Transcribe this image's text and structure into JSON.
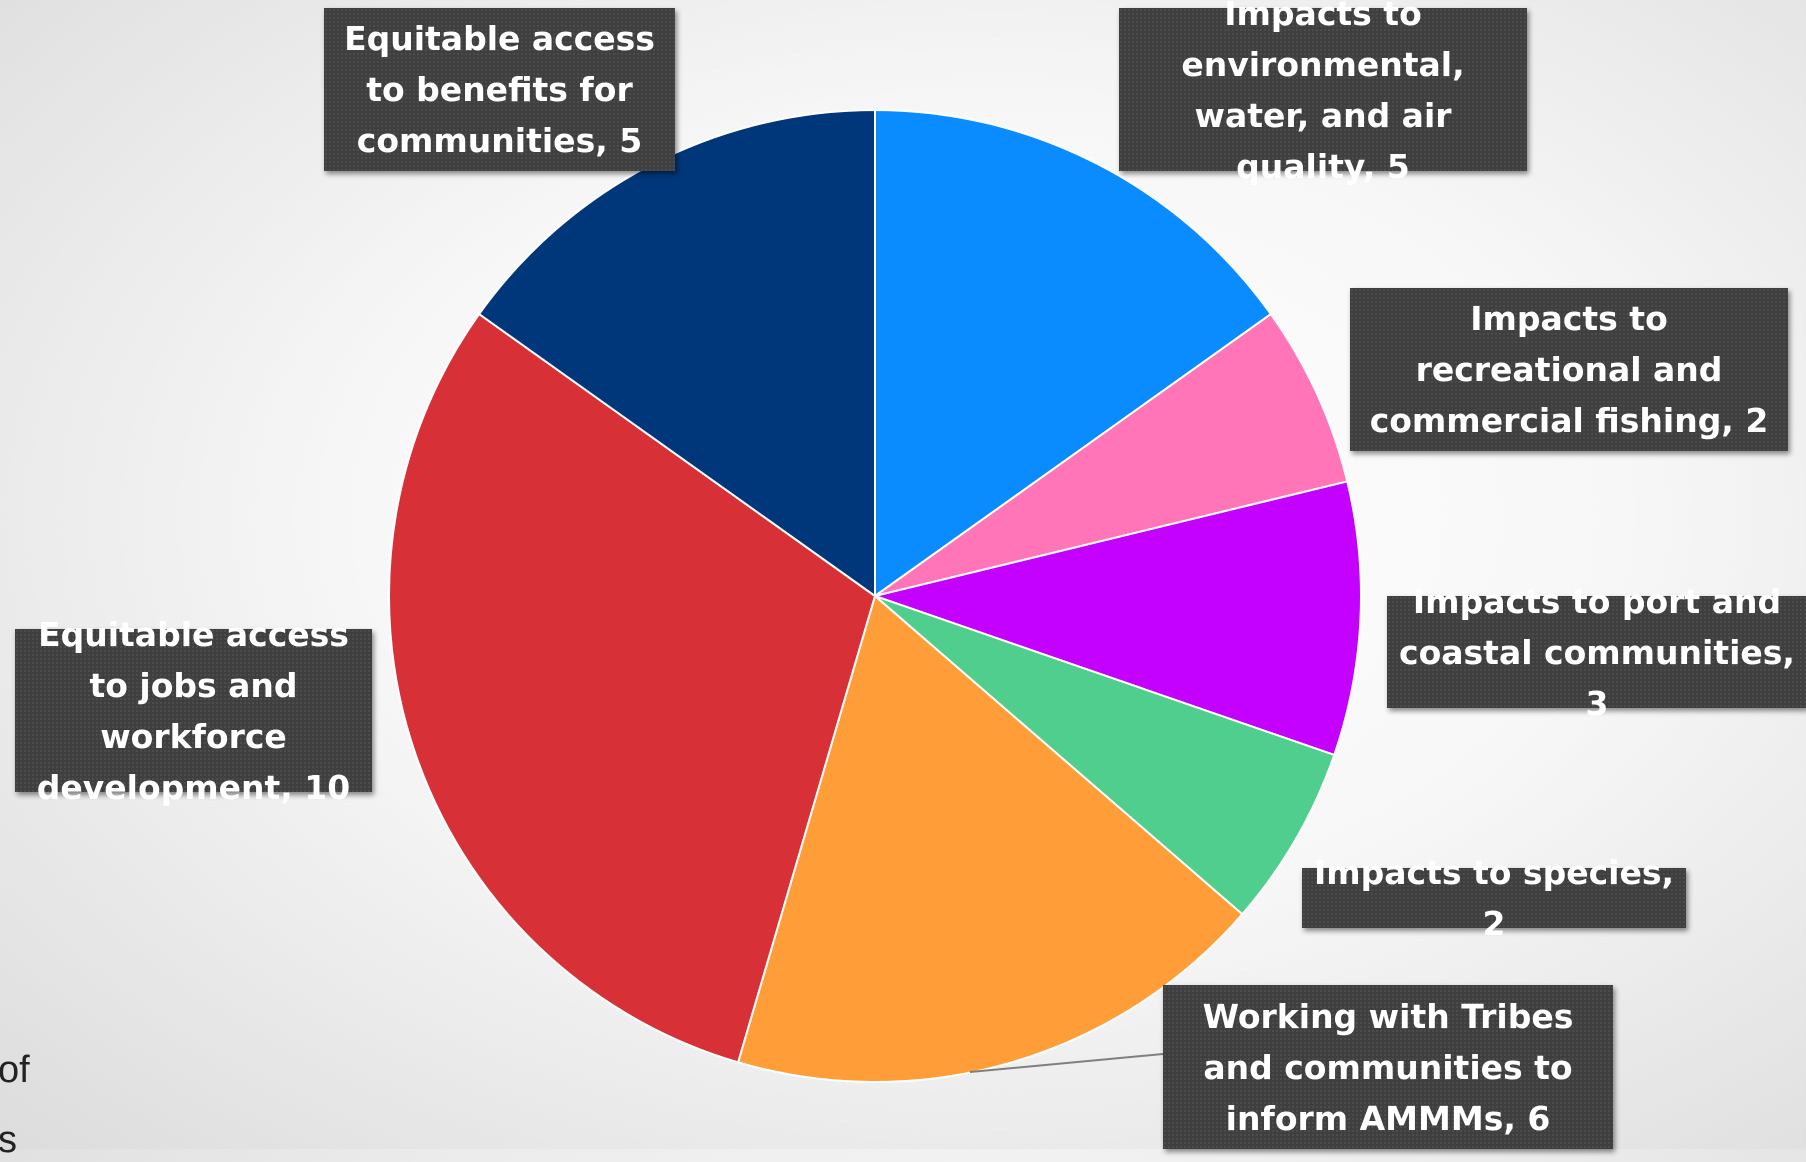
{
  "chart_data": {
    "type": "pie",
    "title": "",
    "start_angle_deg": 0,
    "direction": "clockwise",
    "slices": [
      {
        "label": "Impacts to environmental, water, and air quality",
        "value": 5,
        "color": "#0a8cff"
      },
      {
        "label": "Impacts to recreational and commercial fishing",
        "value": 2,
        "color": "#ff75b8"
      },
      {
        "label": "Impacts to port and coastal communities",
        "value": 3,
        "color": "#c400ff"
      },
      {
        "label": "Impacts to species",
        "value": 2,
        "color": "#4fce8e"
      },
      {
        "label": "Working with Tribes and communities to inform AMMMs",
        "value": 6,
        "color": "#ff9e38"
      },
      {
        "label": "Equitable access to jobs and workforce development",
        "value": 10,
        "color": "#d83037"
      },
      {
        "label": "Equitable access to benefits for communities",
        "value": 5,
        "color": "#00377a"
      }
    ],
    "data_labels": [
      "Impacts to environmental, water, and air quality, 5",
      "Impacts to recreational and commercial fishing, 2",
      "Impacts to port and coastal communities, 3",
      "Impacts to species, 2",
      "Working with Tribes and communities to inform AMMMs, 6",
      "Equitable access to jobs and workforce development, 10",
      "Equitable access to benefits for communities, 5"
    ]
  },
  "background_fragments": {
    "fragment_1": "of",
    "fragment_2": "s"
  }
}
